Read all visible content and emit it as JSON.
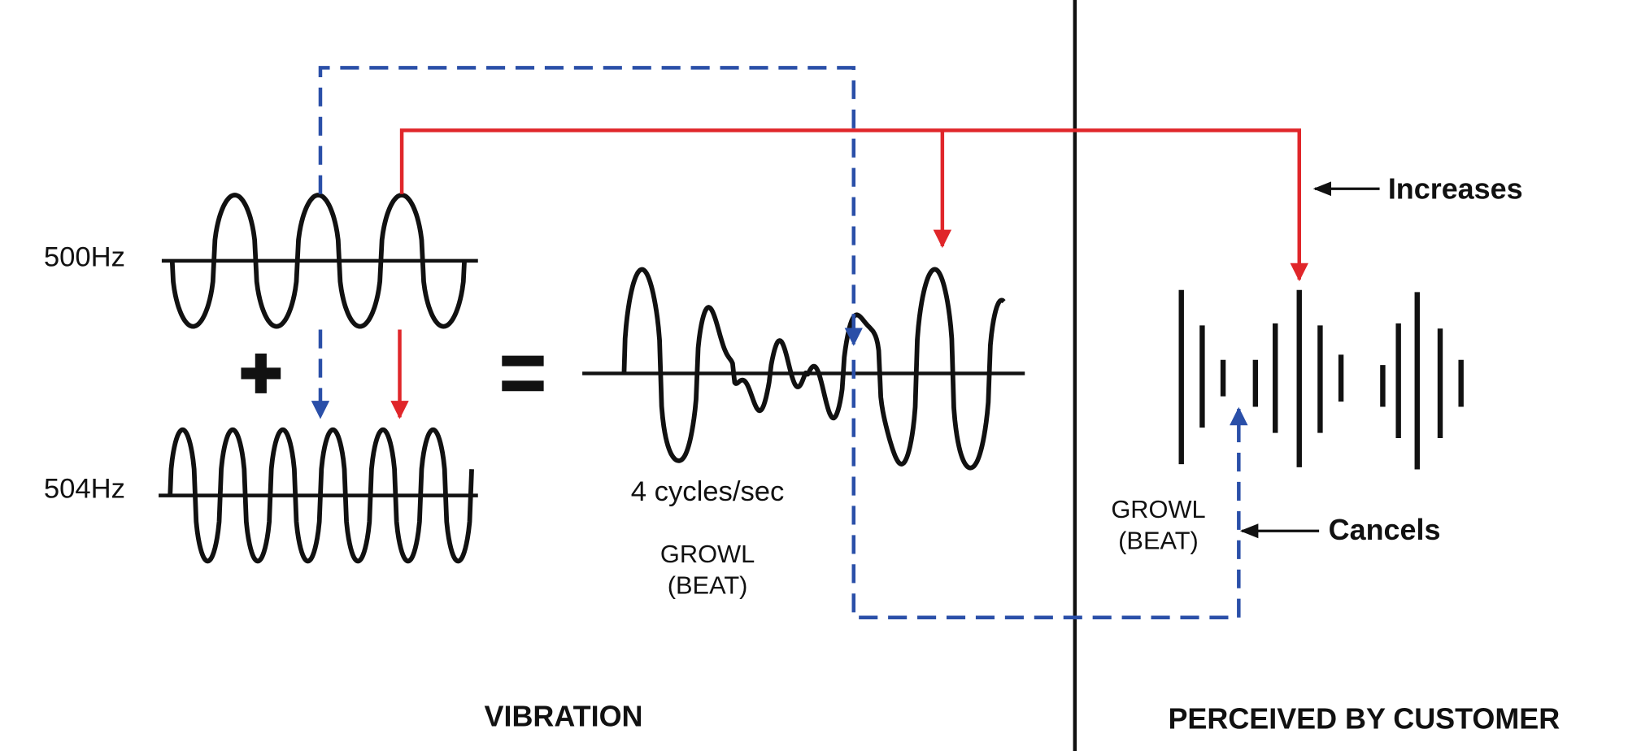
{
  "inputs": [
    {
      "label": "500Hz"
    },
    {
      "label": "504Hz"
    }
  ],
  "result": {
    "rate": "4 cycles/sec",
    "name": [
      "GROWL",
      "(BEAT)"
    ]
  },
  "perceived": {
    "name": [
      "GROWL",
      "(BEAT)"
    ],
    "increases": "Increases",
    "cancels": "Cancels"
  },
  "sections": [
    "VIBRATION",
    "PERCEIVED BY CUSTOMER"
  ]
}
